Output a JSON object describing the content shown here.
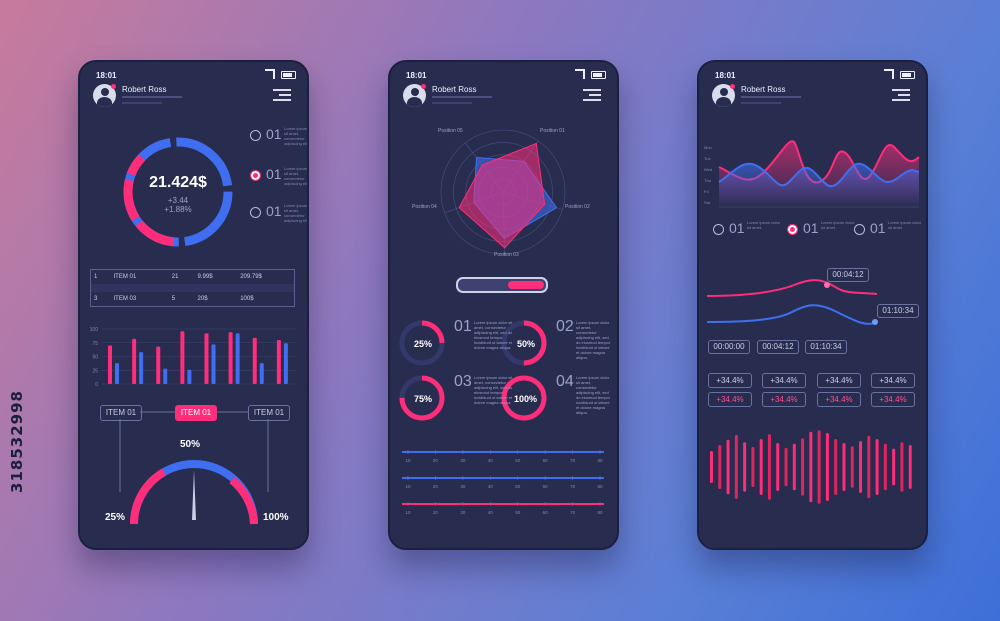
{
  "side_code": "318532998",
  "phones": [
    {
      "status_time": "18:01",
      "user_name": "Robert Ross",
      "donut": {
        "value": "21.424$",
        "delta1": "+3.44",
        "delta2": "+1.88%"
      },
      "legend": [
        {
          "num": "01",
          "active": false
        },
        {
          "num": "01",
          "active": true
        },
        {
          "num": "01",
          "active": false
        }
      ],
      "table": [
        {
          "idx": "1",
          "item": "ITEM 01",
          "qty": "21",
          "price": "9.99$",
          "total": "209.79$"
        },
        {
          "idx": "",
          "item": "",
          "qty": "",
          "price": "",
          "total": ""
        },
        {
          "idx": "3",
          "item": "ITEM 03",
          "qty": "5",
          "price": "20$",
          "total": "100$"
        }
      ],
      "bar_chart": {
        "y_ticks": [
          "100",
          "75",
          "50",
          "25",
          "0"
        ],
        "ylim": [
          0,
          100
        ],
        "series": [
          {
            "color": "#ff2d7a",
            "values": [
              70,
              82,
              68,
              96,
              92,
              94,
              84,
              80
            ]
          },
          {
            "color": "#3f6ff0",
            "values": [
              38,
              58,
              28,
              26,
              72,
              92,
              38,
              74
            ]
          }
        ]
      },
      "item_tabs": [
        "ITEM 01",
        "ITEM 01",
        "ITEM 01"
      ],
      "gauge": {
        "top_label": "50%",
        "left_label": "25%",
        "right_label": "100%",
        "value_pct": 50
      }
    },
    {
      "status_time": "18:01",
      "user_name": "Robert Ross",
      "radar": {
        "axes": [
          "Position 01",
          "Position 02",
          "Position 03",
          "Position 04",
          "Position 05"
        ],
        "series": [
          {
            "color": "#ff2d7a",
            "values": [
              0.95,
              0.7,
              0.9,
              0.75,
              0.55
            ]
          },
          {
            "color": "#3f6ff0",
            "values": [
              0.6,
              0.9,
              0.75,
              0.5,
              0.7
            ]
          }
        ]
      },
      "progress": [
        {
          "num": "01",
          "pct": "25%",
          "value": 25
        },
        {
          "num": "02",
          "pct": "50%",
          "value": 50
        },
        {
          "num": "03",
          "pct": "75%",
          "value": 75
        },
        {
          "num": "04",
          "pct": "100%",
          "value": 100
        }
      ],
      "lorem": "Lorem ipsum dolor sit amet, consectetur adipiscing elit, sed do eiusmod tempor incididunt ut labore et dolore magna aliqua.",
      "sliders": [
        {
          "color": "#3f6ff0",
          "ticks": [
            "10",
            "20",
            "30",
            "40",
            "50",
            "60",
            "70",
            "80"
          ]
        },
        {
          "color": "#3f6ff0",
          "ticks": [
            "10",
            "20",
            "30",
            "40",
            "50",
            "60",
            "70",
            "80"
          ]
        },
        {
          "color": "#ff2d7a",
          "ticks": [
            "10",
            "20",
            "30",
            "40",
            "50",
            "60",
            "70",
            "80"
          ]
        }
      ]
    },
    {
      "status_time": "18:01",
      "user_name": "Robert Ross",
      "wave_days": [
        "Mon",
        "Tue",
        "Wed",
        "Thu",
        "Fri",
        "Sat"
      ],
      "legend": [
        {
          "num": "01",
          "active": false
        },
        {
          "num": "01",
          "active": true
        },
        {
          "num": "01",
          "active": false
        }
      ],
      "times": {
        "a": "00:04:12",
        "b": "01:10:34"
      },
      "time_pills": [
        "00:00:00",
        "00:04:12",
        "01:10:34"
      ],
      "stats_row1": [
        "+34.4%",
        "+34.4%",
        "+34.4%",
        "+34.4%"
      ],
      "stats_row2": [
        "+34.4%",
        "+34.4%",
        "+34.4%",
        "+34.4%"
      ],
      "equalizer": [
        40,
        55,
        68,
        80,
        62,
        50,
        70,
        82,
        60,
        48,
        58,
        72,
        88,
        92,
        85,
        70,
        60,
        52,
        65,
        78,
        70,
        58,
        46,
        62,
        55
      ]
    }
  ]
}
